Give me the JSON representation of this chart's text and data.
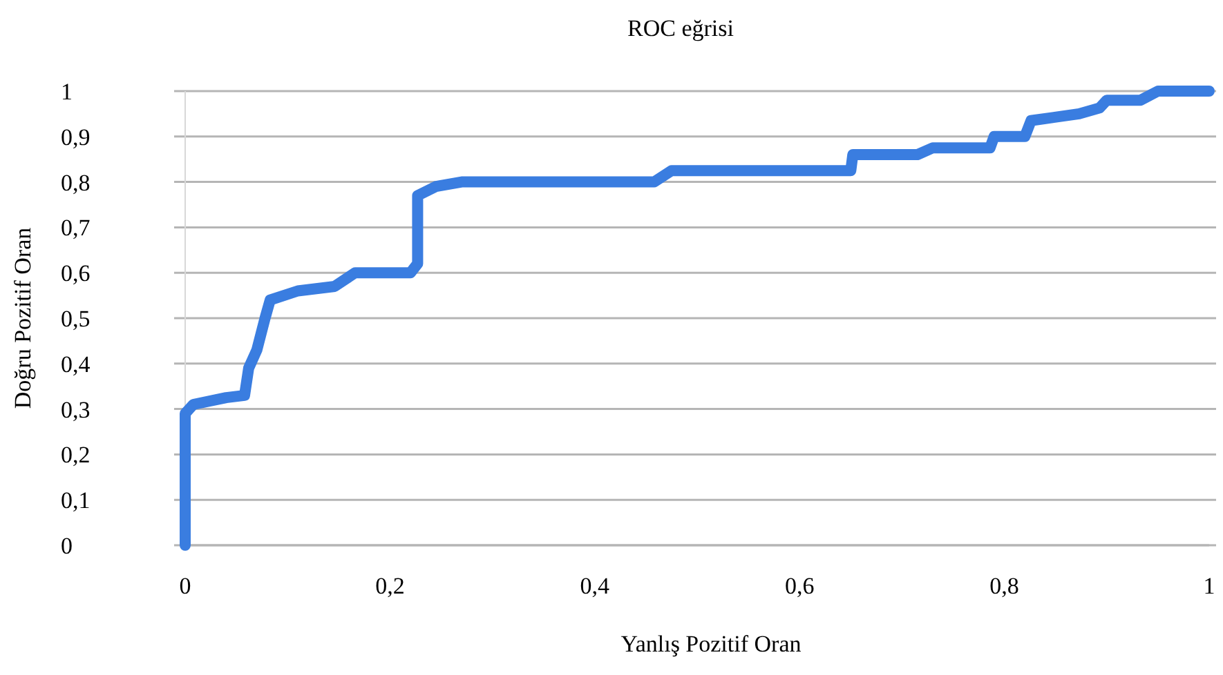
{
  "chart_data": {
    "type": "line",
    "title": "ROC eğrisi",
    "xlabel": "Yanlış Pozitif Oran",
    "ylabel": "Doğru Pozitif Oran",
    "xlim": [
      0,
      1
    ],
    "ylim": [
      0,
      1
    ],
    "xticks": [
      0,
      {
        "value": 0.2,
        "label": "0,2"
      },
      {
        "value": 0.4,
        "label": "0,4"
      },
      {
        "value": 0.6,
        "label": "0,6"
      },
      {
        "value": 0.8,
        "label": "0,8"
      },
      1
    ],
    "yticks": [
      0,
      {
        "value": 0.1,
        "label": "0,1"
      },
      {
        "value": 0.2,
        "label": "0,2"
      },
      {
        "value": 0.3,
        "label": "0,3"
      },
      {
        "value": 0.4,
        "label": "0,4"
      },
      {
        "value": 0.5,
        "label": "0,5"
      },
      {
        "value": 0.6,
        "label": "0,6"
      },
      {
        "value": 0.7,
        "label": "0,7"
      },
      {
        "value": 0.8,
        "label": "0,8"
      },
      {
        "value": 0.9,
        "label": "0,9"
      },
      1
    ],
    "grid": "y",
    "line_style": "solid",
    "series": [
      {
        "color": "#3a7de0",
        "x": [
          0,
          0,
          0.008,
          0.04,
          0.058,
          0.062,
          0.07,
          0.078,
          0.083,
          0.11,
          0.146,
          0.166,
          0.22,
          0.227,
          0.227,
          0.245,
          0.27,
          0.458,
          0.475,
          0.65,
          0.652,
          0.715,
          0.73,
          0.786,
          0.79,
          0.82,
          0.826,
          0.873,
          0.893,
          0.9,
          0.933,
          0.95,
          1
        ],
        "values": [
          0,
          0.29,
          0.31,
          0.325,
          0.33,
          0.39,
          0.43,
          0.5,
          0.54,
          0.56,
          0.57,
          0.6,
          0.6,
          0.62,
          0.77,
          0.79,
          0.8,
          0.8,
          0.825,
          0.825,
          0.86,
          0.86,
          0.875,
          0.875,
          0.9,
          0.9,
          0.935,
          0.95,
          0.963,
          0.98,
          0.98,
          1,
          1
        ]
      }
    ]
  }
}
